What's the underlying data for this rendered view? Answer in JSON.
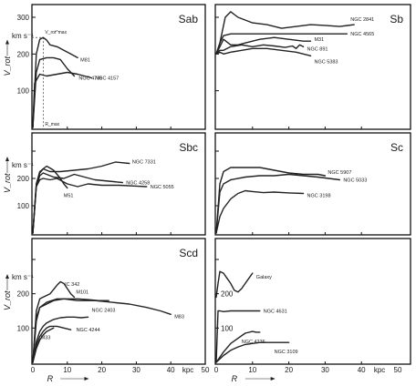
{
  "chart_data": [
    {
      "type": "line",
      "panel_label": "Sab",
      "ylabel": "V_rot",
      "yunit": "km s⁻¹",
      "yticks": [
        "100",
        "200",
        "300"
      ],
      "xaxis": "none",
      "ylim": [
        0,
        330
      ],
      "xlim": [
        0,
        50
      ],
      "annotations": {
        "vmax": "V_rot^max",
        "rmax": "R_max"
      },
      "series": [
        {
          "name": "M81",
          "x": [
            0,
            1,
            2,
            3,
            4,
            5,
            7,
            9,
            11,
            13
          ],
          "y": [
            0,
            200,
            240,
            245,
            238,
            225,
            220,
            210,
            200,
            190
          ]
        },
        {
          "name": "NGC 4736",
          "x": [
            0,
            1,
            2,
            4,
            6,
            8,
            10,
            12
          ],
          "y": [
            0,
            150,
            185,
            190,
            190,
            185,
            160,
            140
          ]
        },
        {
          "name": "NGC 4157",
          "x": [
            0,
            0.5,
            2,
            4,
            7,
            10,
            13,
            15,
            17
          ],
          "y": [
            0,
            120,
            145,
            140,
            145,
            150,
            145,
            140,
            135
          ]
        }
      ]
    },
    {
      "type": "line",
      "panel_label": "Sb",
      "xaxis": "none",
      "ylim": [
        0,
        330
      ],
      "xlim": [
        0,
        50
      ],
      "series": [
        {
          "name": "NGC 2841",
          "x": [
            0,
            1,
            2.5,
            4,
            6,
            10,
            14,
            18,
            22,
            26,
            30,
            34,
            38
          ],
          "y": [
            200,
            230,
            300,
            315,
            300,
            285,
            280,
            270,
            275,
            280,
            278,
            275,
            280
          ]
        },
        {
          "name": "NGC 4565",
          "x": [
            0,
            1,
            2,
            4,
            8,
            12,
            16,
            20,
            24,
            28,
            32,
            36
          ],
          "y": [
            200,
            230,
            250,
            255,
            255,
            255,
            255,
            255,
            255,
            255,
            255,
            255
          ]
        },
        {
          "name": "M31",
          "x": [
            0,
            1,
            2,
            4,
            6,
            8,
            12,
            16,
            20,
            24,
            26
          ],
          "y": [
            200,
            220,
            240,
            225,
            225,
            230,
            240,
            245,
            240,
            235,
            235
          ]
        },
        {
          "name": "NGC 891",
          "x": [
            0,
            1,
            2,
            4,
            7,
            10,
            13,
            16,
            19,
            21,
            22,
            23,
            24
          ],
          "y": [
            200,
            210,
            210,
            220,
            225,
            220,
            225,
            222,
            218,
            222,
            215,
            225,
            220
          ]
        },
        {
          "name": "NGC 5383",
          "x": [
            0,
            1,
            2,
            4,
            7,
            10,
            14,
            18,
            22,
            26
          ],
          "y": [
            200,
            205,
            200,
            205,
            210,
            215,
            215,
            210,
            205,
            195
          ]
        }
      ]
    },
    {
      "type": "line",
      "panel_label": "Sbc",
      "ylabel": "V_rot",
      "yunit": "km s⁻¹",
      "yticks": [
        "100",
        "200"
      ],
      "xaxis": "none",
      "ylim": [
        0,
        330
      ],
      "xlim": [
        0,
        50
      ],
      "series": [
        {
          "name": "NGC 7331",
          "x": [
            0,
            1,
            2,
            3,
            5,
            8,
            12,
            16,
            20,
            24,
            28
          ],
          "y": [
            0,
            180,
            225,
            235,
            225,
            225,
            230,
            235,
            245,
            260,
            255
          ]
        },
        {
          "name": "NGC 4258",
          "x": [
            0,
            1,
            2,
            3,
            4,
            6,
            9,
            12,
            15,
            18,
            22,
            26
          ],
          "y": [
            0,
            170,
            210,
            220,
            215,
            205,
            200,
            215,
            205,
            195,
            190,
            185
          ]
        },
        {
          "name": "M51",
          "x": [
            0,
            1,
            2,
            3,
            4,
            5,
            6,
            7,
            8,
            9,
            10
          ],
          "y": [
            0,
            180,
            220,
            235,
            245,
            238,
            230,
            215,
            200,
            180,
            165
          ]
        },
        {
          "name": "NGC 5055",
          "x": [
            0,
            1,
            2,
            3,
            5,
            7,
            10,
            13,
            16,
            20,
            25,
            30,
            33
          ],
          "y": [
            0,
            170,
            195,
            200,
            195,
            200,
            180,
            170,
            180,
            175,
            175,
            172,
            170
          ]
        }
      ]
    },
    {
      "type": "line",
      "panel_label": "Sc",
      "xaxis": "none",
      "ylim": [
        0,
        330
      ],
      "xlim": [
        0,
        50
      ],
      "series": [
        {
          "name": "NGC 5907",
          "x": [
            0,
            1,
            2,
            4,
            8,
            12,
            16,
            20,
            24,
            28,
            30
          ],
          "y": [
            0,
            180,
            225,
            240,
            240,
            240,
            230,
            220,
            215,
            215,
            210
          ]
        },
        {
          "name": "NGC 5033",
          "x": [
            0,
            1,
            2,
            4,
            8,
            12,
            16,
            20,
            24,
            28,
            31,
            34
          ],
          "y": [
            0,
            150,
            180,
            195,
            205,
            210,
            210,
            215,
            210,
            205,
            200,
            195
          ]
        },
        {
          "name": "NGC 3198",
          "x": [
            0,
            1,
            2,
            4,
            6,
            8,
            10,
            13,
            16,
            20,
            24
          ],
          "y": [
            0,
            60,
            90,
            125,
            145,
            155,
            152,
            148,
            150,
            147,
            145
          ]
        }
      ]
    },
    {
      "type": "line",
      "panel_label": "Scd",
      "ylabel": "V_rot",
      "yunit": "km s⁻¹",
      "yticks": [
        "100",
        "200"
      ],
      "xlabel": "R",
      "xunit": "kpc",
      "xticks": [
        "0",
        "10",
        "20",
        "30",
        "40",
        "50"
      ],
      "ylim": [
        0,
        330
      ],
      "xlim": [
        0,
        50
      ],
      "series": [
        {
          "name": "M101",
          "x": [
            0,
            1,
            2,
            3,
            5,
            7,
            8,
            9,
            10,
            11,
            12
          ],
          "y": [
            0,
            150,
            185,
            190,
            200,
            225,
            235,
            230,
            215,
            200,
            190
          ]
        },
        {
          "name": "IC 342",
          "x": [
            0,
            1,
            2,
            4,
            7,
            10,
            13,
            16,
            19,
            22
          ],
          "y": [
            0,
            120,
            160,
            175,
            185,
            185,
            185,
            183,
            180,
            180
          ]
        },
        {
          "name": "M83",
          "x": [
            0,
            1,
            2,
            4,
            6,
            9,
            13,
            18,
            23,
            28,
            33,
            37,
            40
          ],
          "y": [
            0,
            130,
            160,
            170,
            180,
            185,
            180,
            180,
            175,
            170,
            160,
            150,
            140
          ]
        },
        {
          "name": "NGC 2403",
          "x": [
            0,
            1,
            2,
            3,
            4,
            6,
            8,
            10,
            12,
            14,
            16
          ],
          "y": [
            0,
            60,
            90,
            105,
            115,
            125,
            130,
            132,
            132,
            130,
            132
          ]
        },
        {
          "name": "NGC 4244",
          "x": [
            0,
            1,
            2,
            3,
            4,
            5,
            7,
            9,
            11
          ],
          "y": [
            0,
            50,
            75,
            90,
            100,
            105,
            105,
            100,
            95
          ]
        },
        {
          "name": "M33",
          "x": [
            0,
            1,
            2,
            3,
            4,
            5,
            6
          ],
          "y": [
            0,
            40,
            65,
            80,
            90,
            95,
            100
          ]
        }
      ]
    },
    {
      "type": "line",
      "panel_label": "",
      "yticks": [
        "100",
        "200"
      ],
      "xlabel": "R",
      "xunit": "kpc",
      "xticks": [
        "0",
        "10",
        "20",
        "30",
        "40",
        "50"
      ],
      "ylim": [
        0,
        330
      ],
      "xlim": [
        0,
        50
      ],
      "series": [
        {
          "name": "Galaxy",
          "x": [
            0,
            0.5,
            1,
            2,
            3,
            4,
            5,
            6,
            7,
            8,
            9,
            10
          ],
          "y": [
            190,
            230,
            265,
            260,
            245,
            230,
            210,
            205,
            215,
            230,
            245,
            260
          ]
        },
        {
          "name": "NGC 4631",
          "x": [
            0,
            0.5,
            1,
            2,
            4,
            6,
            8,
            10,
            12
          ],
          "y": [
            0,
            150,
            150,
            148,
            150,
            150,
            150,
            150,
            150
          ]
        },
        {
          "name": "NGC 4236",
          "x": [
            0,
            2,
            4,
            6,
            8,
            10,
            11,
            12
          ],
          "y": [
            0,
            30,
            55,
            70,
            85,
            90,
            88,
            88
          ]
        },
        {
          "name": "NGC 3109",
          "x": [
            0,
            2,
            4,
            6,
            8,
            10,
            12,
            14,
            17,
            20
          ],
          "y": [
            0,
            20,
            35,
            45,
            52,
            55,
            58,
            58,
            58,
            58
          ]
        }
      ]
    }
  ]
}
